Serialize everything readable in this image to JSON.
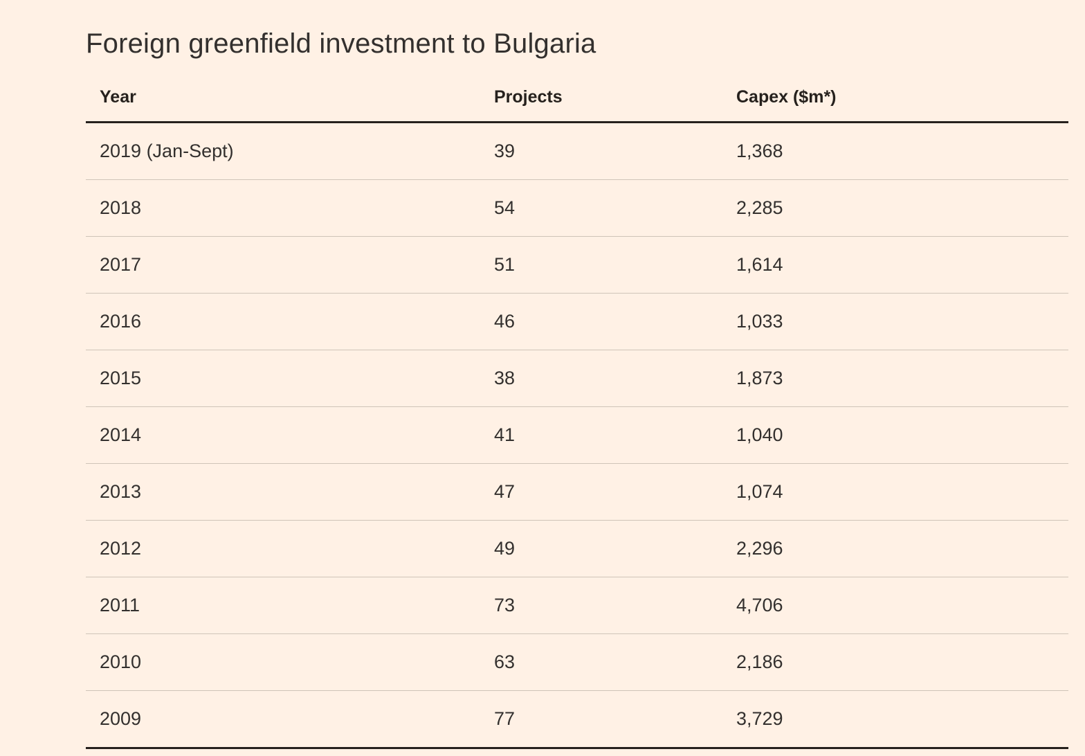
{
  "page": {
    "background_color": "#FFF1E5",
    "accent_text_color": "#33302E",
    "rule_color": "#26211D",
    "row_divider_color": "#CFC4B8"
  },
  "chart_data": {
    "type": "table",
    "title": "Foreign greenfield investment to Bulgaria",
    "columns": [
      "Year",
      "Projects",
      "Capex ($m*)"
    ],
    "rows": [
      [
        "2019 (Jan-Sept)",
        "39",
        "1,368"
      ],
      [
        "2018",
        "54",
        "2,285"
      ],
      [
        "2017",
        "51",
        "1,614"
      ],
      [
        "2016",
        "46",
        "1,033"
      ],
      [
        "2015",
        "38",
        "1,873"
      ],
      [
        "2014",
        "41",
        "1,040"
      ],
      [
        "2013",
        "47",
        "1,074"
      ],
      [
        "2012",
        "49",
        "2,296"
      ],
      [
        "2011",
        "73",
        "4,706"
      ],
      [
        "2010",
        "63",
        "2,186"
      ],
      [
        "2009",
        "77",
        "3,729"
      ]
    ]
  }
}
